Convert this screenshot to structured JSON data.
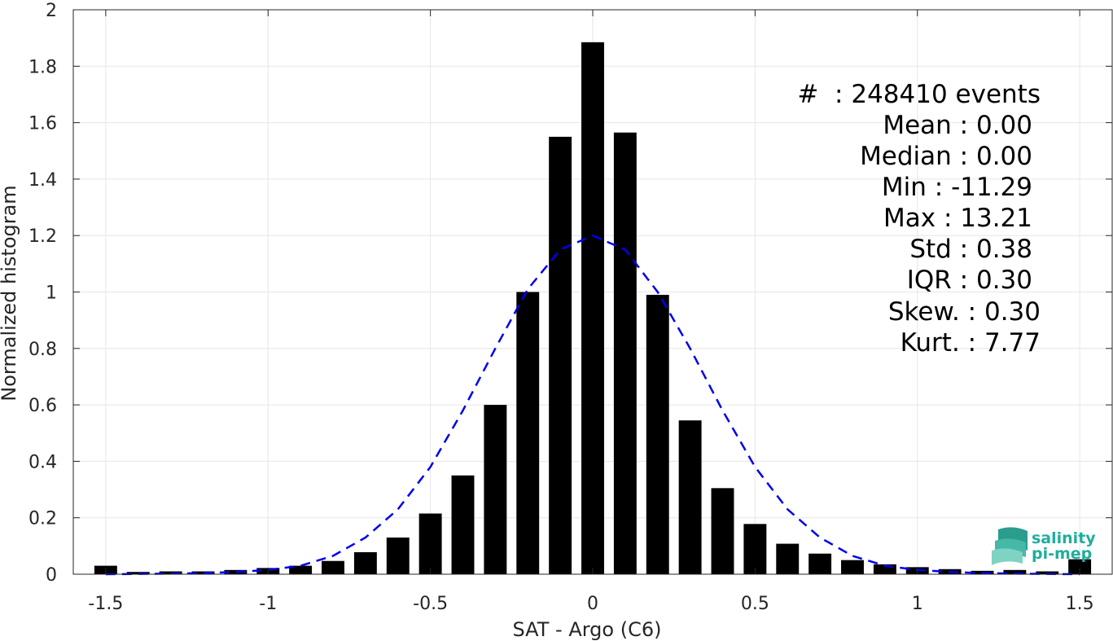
{
  "chart_data": {
    "type": "bar",
    "xlabel": "SAT - Argo (C6)",
    "ylabel": "Normalized histogram",
    "xlim": [
      -1.6,
      1.6
    ],
    "ylim": [
      0,
      2
    ],
    "grid": true,
    "xticks": [
      -1.5,
      -1,
      -0.5,
      0,
      0.5,
      1,
      1.5
    ],
    "xtick_labels": [
      "-1.5",
      "-1",
      "-0.5",
      "0",
      "0.5",
      "1",
      "1.5"
    ],
    "yticks": [
      0,
      0.2,
      0.4,
      0.6,
      0.8,
      1,
      1.2,
      1.4,
      1.6,
      1.8,
      2
    ],
    "ytick_labels": [
      "0",
      "0.2",
      "0.4",
      "0.6",
      "0.8",
      "1",
      "1.2",
      "1.4",
      "1.6",
      "1.8",
      "2"
    ],
    "bar_width": 0.07,
    "bar_color": "#000000",
    "x": [
      -1.5,
      -1.4,
      -1.3,
      -1.2,
      -1.1,
      -1.0,
      -0.9,
      -0.8,
      -0.7,
      -0.6,
      -0.5,
      -0.4,
      -0.3,
      -0.2,
      -0.1,
      0.0,
      0.1,
      0.2,
      0.3,
      0.4,
      0.5,
      0.6,
      0.7,
      0.8,
      0.9,
      1.0,
      1.1,
      1.2,
      1.3,
      1.4,
      1.5
    ],
    "values": [
      0.03,
      0.008,
      0.01,
      0.01,
      0.015,
      0.022,
      0.03,
      0.047,
      0.078,
      0.13,
      0.215,
      0.35,
      0.6,
      1.0,
      1.55,
      1.885,
      1.565,
      0.99,
      0.545,
      0.305,
      0.178,
      0.108,
      0.073,
      0.05,
      0.035,
      0.025,
      0.018,
      0.012,
      0.015,
      0.01,
      0.053
    ],
    "fit": {
      "style": "dashed",
      "color": "#0000ee",
      "x": [
        -1.5,
        -1.4,
        -1.3,
        -1.2,
        -1.1,
        -1.0,
        -0.9,
        -0.8,
        -0.7,
        -0.6,
        -0.5,
        -0.4,
        -0.3,
        -0.2,
        -0.1,
        0.0,
        0.1,
        0.2,
        0.3,
        0.4,
        0.5,
        0.6,
        0.7,
        0.8,
        0.9,
        1.0,
        1.1,
        1.2,
        1.3,
        1.4,
        1.5
      ],
      "y": [
        0.0,
        0.001,
        0.002,
        0.004,
        0.008,
        0.015,
        0.03,
        0.065,
        0.13,
        0.23,
        0.38,
        0.58,
        0.8,
        1.01,
        1.15,
        1.2,
        1.15,
        1.0,
        0.8,
        0.58,
        0.38,
        0.23,
        0.13,
        0.065,
        0.03,
        0.015,
        0.008,
        0.004,
        0.002,
        0.001,
        0.0
      ]
    },
    "annotations": [
      "#  : 248410 events",
      "Mean : 0.00",
      "Median : 0.00",
      "Min : -11.29",
      "Max : 13.21",
      "Std : 0.38",
      "IQR : 0.30",
      "Skew. : 0.30",
      "Kurt. : 7.77"
    ]
  },
  "logo": {
    "line1": "salinity",
    "line2": "pi-mep",
    "color": "#1fae9c"
  }
}
